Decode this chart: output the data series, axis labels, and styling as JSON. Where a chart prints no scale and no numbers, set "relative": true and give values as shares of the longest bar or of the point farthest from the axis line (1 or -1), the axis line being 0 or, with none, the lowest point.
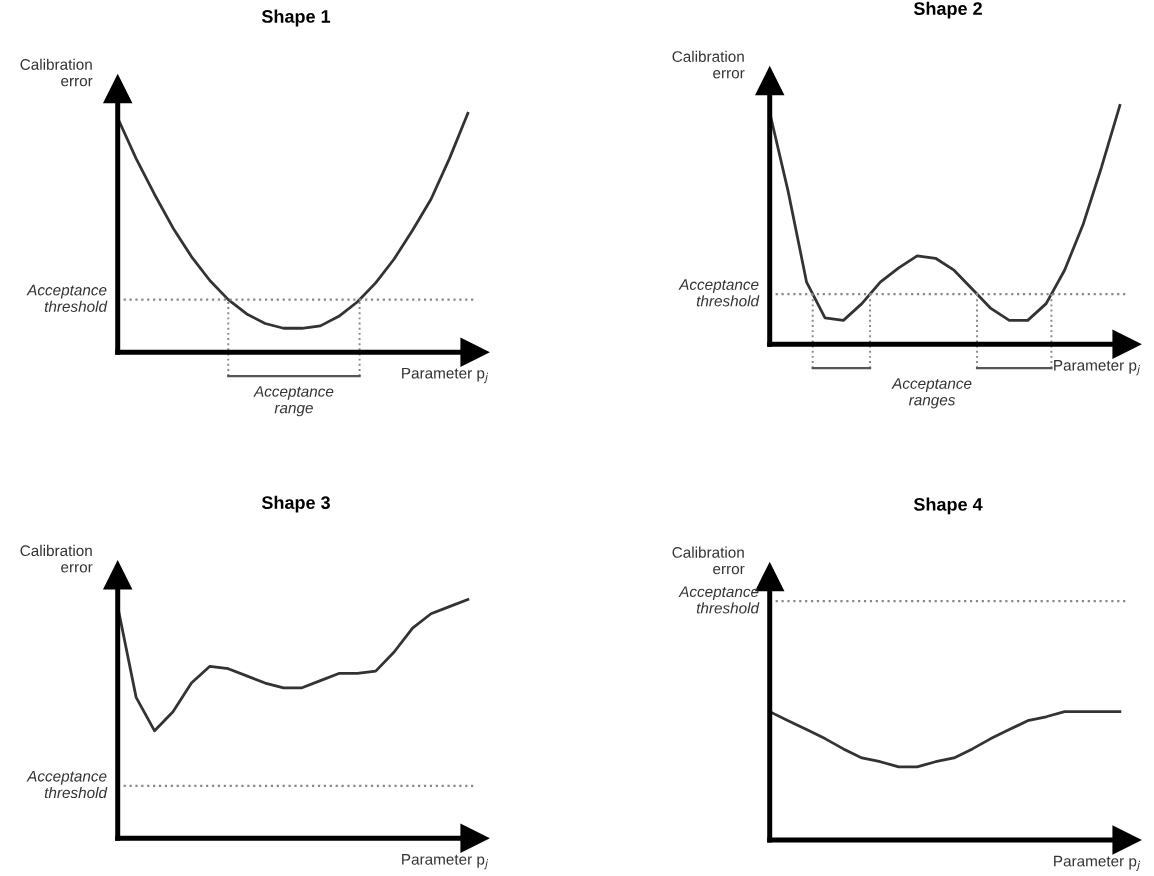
{
  "chart_data": [
    {
      "type": "line",
      "title": "Shape 1",
      "xlabel": "Parameter p$_{j}$",
      "ylabel": "Calibration error",
      "relative": true,
      "marker": "none",
      "line_style": "solid",
      "categories": [
        null,
        null,
        null,
        null,
        null,
        null,
        null,
        null,
        null,
        null,
        null,
        null,
        null,
        null,
        null,
        null,
        null,
        null,
        null,
        null
      ],
      "series": [
        {
          "color": "#333333",
          "values": [
            0.98,
            0.81,
            0.66,
            0.52,
            0.4,
            0.3,
            0.22,
            0.16,
            0.12,
            0.1,
            0.1,
            0.11,
            0.15,
            0.21,
            0.29,
            0.39,
            0.51,
            0.64,
            0.81,
            1.0
          ]
        }
      ],
      "ref_lines": [
        {
          "axis": "y",
          "value": 0.22,
          "label": "Acceptance threshold",
          "color": "#888888",
          "line_style": "dotted"
        }
      ],
      "annotations": [
        "Acceptance range"
      ]
    },
    {
      "type": "line",
      "title": "Shape 2",
      "xlabel": "Parameter p$_{j}$",
      "ylabel": "Calibration error",
      "relative": true,
      "marker": "none",
      "line_style": "solid",
      "categories": [
        null,
        null,
        null,
        null,
        null,
        null,
        null,
        null,
        null,
        null,
        null,
        null,
        null,
        null,
        null,
        null,
        null,
        null,
        null,
        null
      ],
      "series": [
        {
          "color": "#333333",
          "values": [
            0.97,
            0.64,
            0.26,
            0.11,
            0.1,
            0.17,
            0.26,
            0.32,
            0.37,
            0.36,
            0.31,
            0.23,
            0.15,
            0.1,
            0.1,
            0.17,
            0.31,
            0.5,
            0.74,
            1.0
          ]
        }
      ],
      "ref_lines": [
        {
          "axis": "y",
          "value": 0.21,
          "label": "Acceptance threshold",
          "color": "#888888",
          "line_style": "dotted"
        }
      ],
      "annotations": [
        "Acceptance ranges"
      ]
    },
    {
      "type": "line",
      "title": "Shape 3",
      "xlabel": "Parameter p$_{j}$",
      "ylabel": "Calibration error",
      "relative": true,
      "marker": "none",
      "line_style": "solid",
      "categories": [
        null,
        null,
        null,
        null,
        null,
        null,
        null,
        null,
        null,
        null,
        null,
        null,
        null,
        null,
        null,
        null,
        null,
        null,
        null,
        null
      ],
      "series": [
        {
          "color": "#333333",
          "values": [
            0.97,
            0.59,
            0.45,
            0.53,
            0.65,
            0.72,
            0.71,
            0.68,
            0.65,
            0.63,
            0.63,
            0.66,
            0.69,
            0.69,
            0.7,
            0.78,
            0.88,
            0.94,
            0.97,
            1.0
          ]
        }
      ],
      "ref_lines": [
        {
          "axis": "y",
          "value": 0.22,
          "label": "Acceptance threshold",
          "color": "#888888",
          "line_style": "dotted"
        }
      ]
    },
    {
      "type": "line",
      "title": "Shape 4",
      "xlabel": "Parameter p$_{j}$",
      "ylabel": "Calibration error",
      "relative": true,
      "marker": "none",
      "line_style": "solid",
      "categories": [
        null,
        null,
        null,
        null,
        null,
        null,
        null,
        null,
        null,
        null,
        null,
        null,
        null,
        null,
        null,
        null,
        null,
        null,
        null,
        null
      ],
      "series": [
        {
          "color": "#333333",
          "values": [
            1.0,
            0.93,
            0.86,
            0.79,
            0.71,
            0.64,
            0.61,
            0.57,
            0.57,
            0.61,
            0.64,
            0.71,
            0.79,
            0.86,
            0.93,
            0.96,
            1.0,
            1.0,
            1.0,
            1.0
          ]
        }
      ],
      "ref_lines": [
        {
          "axis": "y",
          "value": 1.86,
          "label": "Acceptance threshold",
          "color": "#888888",
          "line_style": "dotted"
        }
      ]
    }
  ]
}
